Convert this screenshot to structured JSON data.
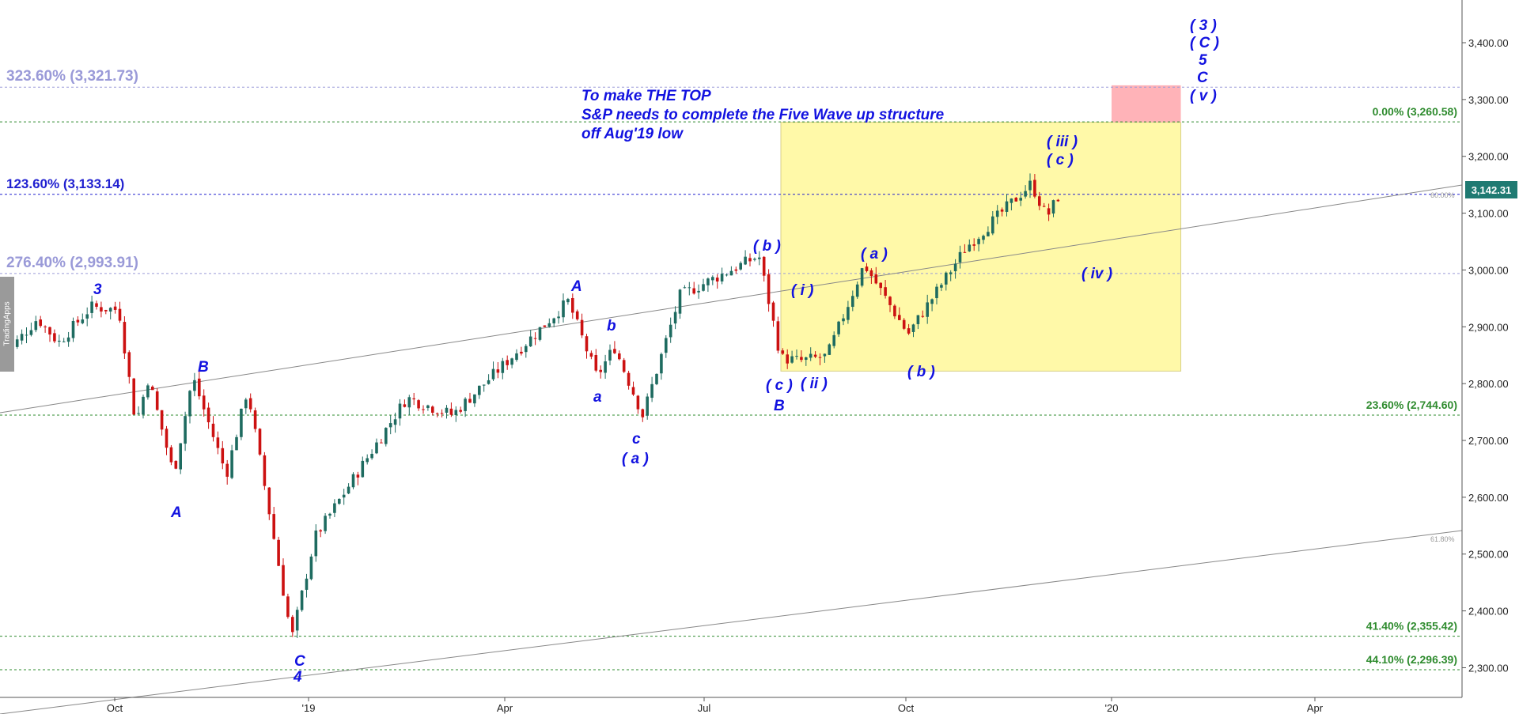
{
  "chart_data": {
    "type": "candlestick",
    "instrument": "S&P",
    "ylim": [
      2260,
      3490
    ],
    "y_ticks": [
      "2,300.00",
      "2,400.00",
      "2,500.00",
      "2,600.00",
      "2,700.00",
      "2,800.00",
      "2,900.00",
      "3,000.00",
      "3,100.00",
      "3,200.00",
      "3,300.00",
      "3,400.00"
    ],
    "x_ticks": [
      "Oct",
      "'19",
      "Apr",
      "Jul",
      "Oct",
      "'20",
      "Apr"
    ],
    "price_tag": "3,142.31",
    "colors": {
      "up": "#1e6b60",
      "down": "#cc1111",
      "wave": "#1212e0",
      "fib_green": "#2e8b2e",
      "fib_blue": "#2020d0",
      "fib_lavender": "#9a9ad8"
    },
    "fib_levels": [
      {
        "label": "323.60% (3,321.73)",
        "value": 3321.73,
        "color": "lavender",
        "side": "left"
      },
      {
        "label": "0.00% (3,260.58)",
        "value": 3260.58,
        "color": "green",
        "side": "right"
      },
      {
        "label": "123.60% (3,133.14)",
        "value": 3133.14,
        "color": "blue",
        "side": "left"
      },
      {
        "label": "276.40% (2,993.91)",
        "value": 2993.91,
        "color": "lavender",
        "side": "left"
      },
      {
        "label": "23.60% (2,744.60)",
        "value": 2744.6,
        "color": "green",
        "side": "right"
      },
      {
        "label": "41.40% (2,355.42)",
        "value": 2355.42,
        "color": "green",
        "side": "right"
      },
      {
        "label": "44.10% (2,296.39)",
        "value": 2296.39,
        "color": "green",
        "side": "right"
      }
    ],
    "channel_labels": [
      "60.00%",
      "61.80%"
    ],
    "note_lines": [
      "To make THE TOP",
      "S&P needs to complete the Five Wave up structure",
      "off Aug'19 low"
    ],
    "wave_labels": [
      "3",
      "B",
      "A",
      "C",
      "4",
      "A",
      "b",
      "a",
      "c",
      "( a )",
      "( b )",
      "( c )",
      "B",
      "( i )",
      "( ii )",
      "( a )",
      "( b )",
      "( iii )",
      "( c )",
      "( iv )",
      "( 3 )",
      "( C )",
      "5",
      "C",
      "( v )"
    ],
    "zones": [
      {
        "name": "yellow-zone",
        "from_date": "2019-08-05",
        "to_date": "2020-02-01",
        "low": 2822,
        "high": 3260,
        "color": "#fff9a8"
      },
      {
        "name": "target-zone",
        "from_date": "2020-01-01",
        "to_date": "2020-02-01",
        "low": 3260,
        "high": 3325,
        "color": "#ffb3b8"
      }
    ],
    "price_path": [
      [
        "2018-08-13",
        2840
      ],
      [
        "2018-08-29",
        2915
      ],
      [
        "2018-09-07",
        2872
      ],
      [
        "2018-09-21",
        2935
      ],
      [
        "2018-10-03",
        2930
      ],
      [
        "2018-10-11",
        2730
      ],
      [
        "2018-10-17",
        2810
      ],
      [
        "2018-10-29",
        2640
      ],
      [
        "2018-11-07",
        2812
      ],
      [
        "2018-11-23",
        2640
      ],
      [
        "2018-12-03",
        2790
      ],
      [
        "2018-12-24",
        2351
      ],
      [
        "2019-01-04",
        2530
      ],
      [
        "2019-02-15",
        2775
      ],
      [
        "2019-03-08",
        2745
      ],
      [
        "2019-04-30",
        2945
      ],
      [
        "2019-05-13",
        2812
      ],
      [
        "2019-05-21",
        2865
      ],
      [
        "2019-06-03",
        2744
      ],
      [
        "2019-06-20",
        2955
      ],
      [
        "2019-07-26",
        3025
      ],
      [
        "2019-08-05",
        2845
      ],
      [
        "2019-08-14",
        2840
      ],
      [
        "2019-08-26",
        2848
      ],
      [
        "2019-09-12",
        3010
      ],
      [
        "2019-10-02",
        2887
      ],
      [
        "2019-10-28",
        3040
      ],
      [
        "2019-11-26",
        3152
      ],
      [
        "2019-12-03",
        3093
      ],
      [
        "2019-12-10",
        3142
      ]
    ]
  }
}
